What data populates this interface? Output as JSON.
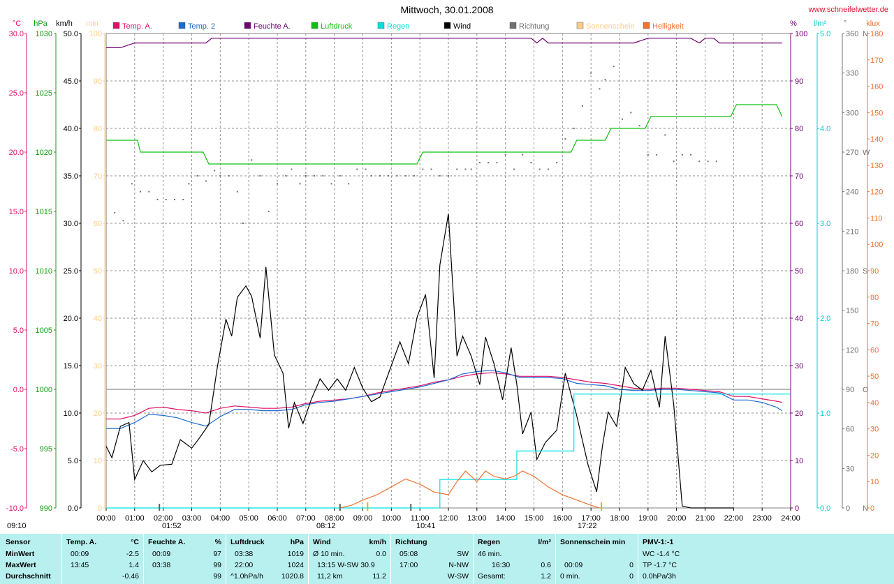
{
  "title": "Mittwoch, 30.01.2008",
  "site": "www.schneifelwetter.de",
  "chart_data": {
    "type": "line",
    "x_range": [
      "00:00",
      "24:00"
    ],
    "x_ticks": [
      "00:00",
      "01:00",
      "02:00",
      "03:00",
      "04:00",
      "05:00",
      "06:00",
      "07:00",
      "08:00",
      "09:00",
      "10:00",
      "11:00",
      "12:00",
      "13:00",
      "14:00",
      "15:00",
      "16:00",
      "17:00",
      "18:00",
      "19:00",
      "20:00",
      "21:00",
      "22:00",
      "23:00",
      "24:00"
    ],
    "grid": true,
    "legend": [
      {
        "label": "Temp. A.",
        "color": "#e0106a"
      },
      {
        "label": "Temp. 2",
        "color": "#1a6ad0"
      },
      {
        "label": "Feuchte A.",
        "color": "#700070"
      },
      {
        "label": "Luftdruck",
        "color": "#10c010"
      },
      {
        "label": "Regen",
        "color": "#00e0e0"
      },
      {
        "label": "Wind",
        "color": "#000000"
      },
      {
        "label": "Richtung",
        "color": "#707070"
      },
      {
        "label": "Sonnenschein",
        "color": "#ffcc88"
      },
      {
        "label": "Helligkeit",
        "color": "#f07030"
      }
    ],
    "axes": {
      "temp": {
        "unit": "°C",
        "color": "#e0106a",
        "range": [
          -10,
          30
        ],
        "ticks": [
          "-10.0",
          "-5.0",
          "0.0",
          "5.0",
          "10.0",
          "15.0",
          "20.0",
          "25.0",
          "30.0"
        ]
      },
      "pressure": {
        "unit": "hPa",
        "color": "#10a010",
        "range": [
          990,
          1030
        ],
        "ticks": [
          "990",
          "995",
          "1000",
          "1005",
          "1010",
          "1015",
          "1020",
          "1025",
          "1030"
        ]
      },
      "wind": {
        "unit": "km/h",
        "color": "#000000",
        "range": [
          0,
          50
        ],
        "ticks": [
          "0.0",
          "5.0",
          "10.0",
          "15.0",
          "20.0",
          "25.0",
          "30.0",
          "35.0",
          "40.0",
          "45.0",
          "50.0"
        ]
      },
      "sunshine": {
        "unit": "min",
        "color": "#ffcc88",
        "range": [
          0,
          100
        ],
        "ticks": [
          "0",
          "10",
          "20",
          "30",
          "40",
          "50",
          "60",
          "70",
          "80",
          "90",
          "100"
        ]
      },
      "humidity": {
        "unit": "%",
        "color": "#700070",
        "range": [
          0,
          100
        ],
        "ticks": [
          "0",
          "10",
          "20",
          "30",
          "40",
          "50",
          "60",
          "70",
          "80",
          "90",
          "100"
        ]
      },
      "rain": {
        "unit": "l/m²",
        "color": "#00d0d0",
        "range": [
          0,
          5
        ],
        "ticks": [
          "0.0",
          "1.0",
          "2.0",
          "3.0",
          "4.0",
          "5.0"
        ]
      },
      "direction": {
        "unit": "°",
        "color": "#707070",
        "range": [
          0,
          360
        ],
        "ticks": [
          "0",
          "30",
          "60",
          "90",
          "120",
          "150",
          "180",
          "210",
          "240",
          "270",
          "300",
          "330",
          "360"
        ],
        "compass": {
          "0": "N",
          "90": "O",
          "180": "S",
          "270": "W",
          "360": "N"
        }
      },
      "brightness": {
        "unit": "klux",
        "color": "#f07030",
        "range": [
          0,
          180
        ],
        "ticks": [
          "0",
          "10",
          "20",
          "30",
          "40",
          "50",
          "60",
          "70",
          "80",
          "90",
          "100",
          "110",
          "120",
          "130",
          "140",
          "150",
          "160",
          "170",
          "180"
        ]
      }
    },
    "markers": {
      "sunrise": "09:10",
      "sunset": "17:22",
      "times": [
        "01:52",
        "08:12",
        "10:41"
      ]
    },
    "series": [
      {
        "name": "Feuchte A.",
        "axis": "humidity",
        "color": "#700070",
        "x": [
          0,
          0.5,
          1,
          1.5,
          2,
          2.5,
          3,
          3.5,
          3.7,
          4,
          5,
          6,
          7,
          8,
          9,
          10,
          11,
          12,
          13,
          14,
          14.9,
          15.1,
          15.3,
          15.5,
          16,
          17,
          18,
          18.5,
          19,
          20,
          20.5,
          20.8,
          21,
          21.3,
          21.5,
          22,
          23,
          23.7
        ],
        "y": [
          97,
          97,
          98,
          98,
          98,
          98,
          98,
          98,
          99,
          99,
          99,
          99,
          99,
          99,
          99,
          99,
          99,
          99,
          99,
          99,
          99,
          98,
          99,
          98,
          98,
          98,
          98,
          98,
          99,
          99,
          99,
          98,
          99,
          99,
          98,
          98,
          98,
          98
        ]
      },
      {
        "name": "Luftdruck",
        "axis": "pressure",
        "color": "#10c010",
        "x": [
          0,
          1.1,
          1.2,
          3.4,
          3.6,
          10.9,
          11.1,
          16.3,
          16.5,
          17.5,
          17.7,
          18.9,
          19.1,
          21.9,
          22.1,
          23.5,
          23.7
        ],
        "y": [
          1021,
          1021,
          1020,
          1020,
          1019,
          1019,
          1020,
          1020,
          1021,
          1021,
          1022,
          1022,
          1023,
          1023,
          1024,
          1024,
          1023
        ]
      },
      {
        "name": "Temp. A.",
        "axis": "temp",
        "color": "#e0106a",
        "x": [
          0,
          0.5,
          1,
          1.5,
          2,
          2.5,
          3,
          3.5,
          4,
          4.5,
          5,
          5.5,
          6,
          6.5,
          7,
          7.5,
          8,
          8.5,
          9,
          9.5,
          10,
          10.5,
          11,
          11.5,
          12,
          12.5,
          13,
          13.5,
          14,
          14.5,
          15,
          15.5,
          16,
          16.5,
          17,
          17.5,
          18,
          18.5,
          19,
          19.5,
          20,
          20.5,
          21,
          21.5,
          22,
          22.5,
          23,
          23.5,
          23.7
        ],
        "y": [
          -2.5,
          -2.5,
          -2.2,
          -1.6,
          -1.5,
          -1.7,
          -1.8,
          -2.0,
          -1.6,
          -1.4,
          -1.5,
          -1.6,
          -1.6,
          -1.5,
          -1.2,
          -1.0,
          -0.9,
          -0.8,
          -0.6,
          -0.3,
          -0.1,
          0.1,
          0.3,
          0.6,
          0.8,
          1.1,
          1.3,
          1.4,
          1.3,
          1.1,
          1.1,
          1.1,
          1.0,
          0.8,
          0.6,
          0.5,
          0.3,
          0.1,
          0.0,
          0.1,
          0.1,
          0.0,
          -0.1,
          -0.2,
          -0.6,
          -0.6,
          -0.8,
          -1.0,
          -1.1
        ]
      },
      {
        "name": "Temp. 2",
        "axis": "temp",
        "color": "#1a6ad0",
        "x": [
          0,
          0.5,
          1,
          1.5,
          2,
          2.5,
          3,
          3.5,
          4,
          4.5,
          5,
          5.5,
          6,
          6.5,
          7,
          7.5,
          8,
          8.5,
          9,
          9.5,
          10,
          10.5,
          11,
          11.5,
          12,
          12.5,
          13,
          13.5,
          14,
          14.5,
          15,
          15.5,
          16,
          16.5,
          17,
          17.5,
          18,
          18.5,
          19,
          19.5,
          20,
          20.5,
          21,
          21.5,
          22,
          22.5,
          23,
          23.5,
          23.7
        ],
        "y": [
          -3.3,
          -3.3,
          -2.8,
          -2.1,
          -2.2,
          -2.4,
          -2.8,
          -3.1,
          -2.3,
          -1.7,
          -1.7,
          -1.8,
          -1.8,
          -1.7,
          -1.3,
          -1.1,
          -1.0,
          -0.8,
          -0.6,
          -0.4,
          -0.2,
          0.0,
          0.2,
          0.5,
          0.8,
          1.3,
          1.5,
          1.6,
          1.4,
          1.0,
          1.0,
          1.0,
          0.9,
          0.5,
          0.4,
          0.3,
          0.0,
          -0.1,
          -0.1,
          0.0,
          0.0,
          -0.1,
          -0.2,
          -0.3,
          -0.9,
          -0.9,
          -1.1,
          -1.5,
          -1.8
        ]
      },
      {
        "name": "Wind",
        "axis": "wind",
        "color": "#000000",
        "x": [
          0,
          0.2,
          0.5,
          0.8,
          1.0,
          1.3,
          1.6,
          1.9,
          2.3,
          2.6,
          3.0,
          3.3,
          3.6,
          3.9,
          4.2,
          4.4,
          4.6,
          4.9,
          5.1,
          5.4,
          5.6,
          5.9,
          6.2,
          6.4,
          6.6,
          6.9,
          7.2,
          7.5,
          7.8,
          8.1,
          8.4,
          8.7,
          9.0,
          9.3,
          9.6,
          10.0,
          10.3,
          10.6,
          10.9,
          11.2,
          11.5,
          11.7,
          12.0,
          12.3,
          12.5,
          12.8,
          13.1,
          13.3,
          13.6,
          13.9,
          14.2,
          14.4,
          14.6,
          14.9,
          15.1,
          15.4,
          15.8,
          16.1,
          16.5,
          16.9,
          17.2,
          17.4,
          17.6,
          17.9,
          18.2,
          18.5,
          18.8,
          19.1,
          19.4,
          19.6,
          19.9,
          20.2,
          20.5,
          20.8,
          21.1,
          21.4,
          21.7,
          22.0
        ],
        "y": [
          6.5,
          5.3,
          8.6,
          9.0,
          3.0,
          5.0,
          3.8,
          4.5,
          4.6,
          7.2,
          6.3,
          7.5,
          8.8,
          14.9,
          19.9,
          18.1,
          22.2,
          23.4,
          22.3,
          17.9,
          25.4,
          16.1,
          14.2,
          8.4,
          11.1,
          8.9,
          11.5,
          13.6,
          12.4,
          13.6,
          12.4,
          14.8,
          12.6,
          11.2,
          11.7,
          15.0,
          17.5,
          15.2,
          20.1,
          22.5,
          13.7,
          25.6,
          31.0,
          16.0,
          18.1,
          16.0,
          13.0,
          18.0,
          15.2,
          11.4,
          16.9,
          13.0,
          7.8,
          10.1,
          5.1,
          6.9,
          8.2,
          14.2,
          9.7,
          4.5,
          1.7,
          6.5,
          10.1,
          8.6,
          14.8,
          13.1,
          12.4,
          14.5,
          10.6,
          18.1,
          10.9,
          0.2,
          0.0,
          0.0,
          0.0,
          0.0,
          0.0,
          0.0
        ]
      },
      {
        "name": "Regen",
        "axis": "rain",
        "color": "#00e0e0",
        "x": [
          0,
          11.7,
          11.7,
          14.4,
          14.4,
          16.4,
          16.4,
          24
        ],
        "y": [
          0,
          0,
          0.3,
          0.3,
          0.6,
          0.6,
          1.2,
          1.2
        ]
      },
      {
        "name": "Helligkeit",
        "axis": "brightness",
        "color": "#f07030",
        "x": [
          8.2,
          8.6,
          9.0,
          9.5,
          10.0,
          10.5,
          11.0,
          11.5,
          12.0,
          12.3,
          12.6,
          13.0,
          13.3,
          13.6,
          14.0,
          14.3,
          14.6,
          15.0,
          15.5,
          16.0,
          16.5,
          17.0,
          17.3
        ],
        "y": [
          0,
          1,
          3,
          5,
          8,
          11,
          9,
          6,
          5,
          10,
          14,
          10,
          14,
          12,
          11,
          12,
          14,
          12,
          8,
          5,
          3,
          1,
          0
        ]
      },
      {
        "name": "Richtung",
        "axis": "direction",
        "color": "#707070",
        "style": "dots",
        "x": [
          0.3,
          0.6,
          0.9,
          1.2,
          1.5,
          1.8,
          2.1,
          2.4,
          2.7,
          2.9,
          3.2,
          3.5,
          3.8,
          4.0,
          4.3,
          4.6,
          4.8,
          5.1,
          5.4,
          5.7,
          6.0,
          6.3,
          6.5,
          6.8,
          7.0,
          7.3,
          7.6,
          7.9,
          8.2,
          8.5,
          8.8,
          9.1,
          9.3,
          9.6,
          9.9,
          10.2,
          10.5,
          10.8,
          11.1,
          11.4,
          11.7,
          12.0,
          12.3,
          12.6,
          12.8,
          13.1,
          13.4,
          13.7,
          14.0,
          14.3,
          14.6,
          14.9,
          15.2,
          15.5,
          15.8,
          16.1,
          16.4,
          16.7,
          17.0,
          17.3,
          17.5,
          17.8,
          18.1,
          18.4,
          18.7,
          19.0,
          19.3,
          19.6,
          19.9,
          20.2,
          20.5,
          20.8,
          21.1,
          21.4
        ],
        "y": [
          224,
          218,
          246,
          240,
          240,
          234,
          234,
          234,
          234,
          246,
          252,
          248,
          256,
          252,
          252,
          240,
          216,
          264,
          252,
          225,
          246,
          252,
          257,
          246,
          252,
          252,
          252,
          246,
          252,
          246,
          257,
          257,
          252,
          252,
          252,
          252,
          252,
          252,
          257,
          257,
          252,
          252,
          257,
          257,
          257,
          262,
          262,
          262,
          268,
          257,
          268,
          262,
          257,
          257,
          262,
          280,
          288,
          305,
          330,
          318,
          325,
          335,
          295,
          300,
          290,
          268,
          268,
          283,
          263,
          268,
          268,
          263,
          263,
          263
        ]
      }
    ]
  },
  "stats": {
    "sensor": {
      "header": "Sensor",
      "rows": [
        "MinWert",
        "MaxWert",
        "Durchschnitt"
      ]
    },
    "temp": {
      "header": "Temp. A.",
      "unit": "°C",
      "r0": [
        "00:09",
        "-2.5"
      ],
      "r1": [
        "13:45",
        "1.4"
      ],
      "r2": [
        "",
        "-0.46"
      ]
    },
    "humidity": {
      "header": "Feuchte A.",
      "unit": "%",
      "r0": [
        "00:09",
        "97"
      ],
      "r1": [
        "03:38",
        "99"
      ],
      "r2": [
        "",
        "99"
      ]
    },
    "pressure": {
      "header": "Luftdruck",
      "unit": "hPa",
      "r0": [
        "03:38",
        "1019"
      ],
      "r1": [
        "22:00",
        "1024"
      ],
      "r2": [
        "^1.0hPa/h",
        "1020.8"
      ]
    },
    "wind": {
      "header": "Wind",
      "unit": "km/h",
      "r0": [
        "Ø 10 min.",
        "0.0"
      ],
      "r1": [
        "13:15  W-SW 30.9",
        ""
      ],
      "r2": [
        "11,2 km",
        "11.2"
      ]
    },
    "direction": {
      "header": "Richtung",
      "r0": [
        "05:08",
        "SW"
      ],
      "r1": [
        "17:00",
        "N-NW"
      ],
      "r2": [
        "",
        "W-SW"
      ]
    },
    "rain": {
      "header": "Regen",
      "unit": "l/m²",
      "r0": [
        "46 min.",
        ""
      ],
      "r1": [
        "16:30",
        "0.6"
      ],
      "r2": [
        "Gesamt:",
        "1.2"
      ]
    },
    "sunshine": {
      "header": "Sonnenschein min",
      "r0": [
        "",
        ""
      ],
      "r1": [
        "00:09",
        "0"
      ],
      "r2": [
        "0 min.",
        "0"
      ]
    },
    "pmv": {
      "header": "PMV-1:-1",
      "r0": "WC -1.4 °C",
      "r1": "TP -1.7 °C",
      "r2": "0.0hPa/3h"
    }
  }
}
